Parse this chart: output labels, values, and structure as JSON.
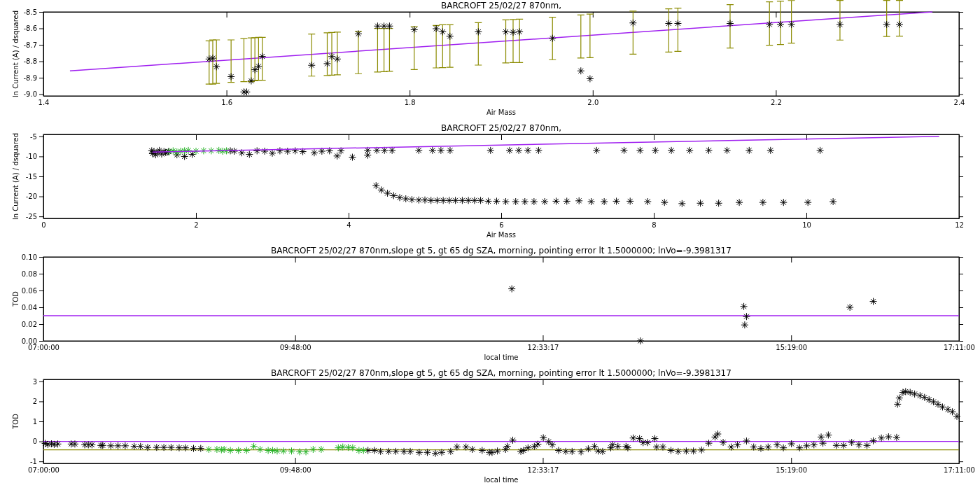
{
  "chart_data": [
    {
      "type": "scatter",
      "title": "BARCROFT 25/02/27 870nm,",
      "xlabel": "Air Mass",
      "ylabel": "ln Current (A) / dsquared",
      "xlim": [
        1.4,
        2.4
      ],
      "ylim": [
        -9.01,
        -8.5
      ],
      "xticks": [
        1.4,
        1.6,
        1.8,
        {
          "value": 2,
          "label": "2.0"
        },
        2.2,
        2.4
      ],
      "yticks": [
        {
          "value": -9,
          "label": "-9.0"
        },
        -8.9,
        -8.8,
        -8.7,
        -8.6,
        -8.5
      ],
      "marker": "cross",
      "series": [
        {
          "type": "line",
          "marker": "none",
          "color": "#a020f0",
          "x": [
            1.429,
            2.371
          ],
          "values": [
            -8.858,
            -8.5
          ]
        },
        {
          "color": "#000000",
          "x": [
            1.581,
            1.585,
            1.589,
            1.605,
            1.619,
            1.622,
            1.627,
            1.631,
            1.635,
            1.639,
            1.693,
            1.71,
            1.715,
            1.721,
            1.744,
            1.765,
            1.772,
            1.778,
            1.805,
            1.829,
            1.836,
            1.844,
            1.875,
            1.905,
            1.913,
            1.92,
            1.956,
            1.987,
            1.997,
            2.044,
            2.083,
            2.093,
            2.15,
            2.193,
            2.205,
            2.217,
            2.27,
            2.321,
            2.335
          ],
          "values": [
            -8.786,
            -8.781,
            -8.833,
            -8.893,
            -8.986,
            -8.986,
            -8.919,
            -8.851,
            -8.831,
            -8.77,
            -8.824,
            -8.814,
            -8.771,
            -8.786,
            -8.633,
            -8.586,
            -8.586,
            -8.586,
            -8.608,
            -8.602,
            -8.621,
            -8.648,
            -8.621,
            -8.621,
            -8.624,
            -8.621,
            -8.66,
            -8.858,
            -8.906,
            -8.567,
            -8.57,
            -8.57,
            -8.57,
            -8.576,
            -8.576,
            -8.576,
            -8.576,
            -8.576,
            -8.576
          ],
          "errors": [
            [
              -8.938,
              -8.676
            ],
            [
              -8.938,
              -8.67
            ],
            [
              -8.934,
              -8.67
            ],
            [
              -8.928,
              -8.67
            ],
            [
              -8.923,
              -8.662
            ],
            null,
            [
              -8.923,
              -8.658
            ],
            [
              -8.918,
              -8.657
            ],
            [
              -8.915,
              -8.655
            ],
            [
              -8.915,
              -8.655
            ],
            [
              -8.89,
              -8.634
            ],
            [
              -8.886,
              -8.627
            ],
            [
              -8.884,
              -8.625
            ],
            [
              -8.882,
              -8.623
            ],
            [
              -8.875,
              -8.617
            ],
            [
              -8.865,
              -8.6
            ],
            [
              -8.863,
              -8.6
            ],
            [
              -8.861,
              -8.6
            ],
            [
              -8.85,
              -8.59
            ],
            [
              -8.84,
              -8.582
            ],
            [
              -8.838,
              -8.578
            ],
            [
              -8.836,
              -8.578
            ],
            [
              -8.823,
              -8.565
            ],
            [
              -8.81,
              -8.548
            ],
            [
              -8.808,
              -8.546
            ],
            [
              -8.808,
              -8.544
            ],
            [
              -8.79,
              -8.532
            ],
            [
              -8.78,
              -8.519
            ],
            [
              -8.778,
              -8.513
            ],
            [
              -8.757,
              -8.495
            ],
            [
              -8.744,
              -8.481
            ],
            [
              -8.74,
              -8.477
            ],
            [
              -8.719,
              -8.456
            ],
            [
              -8.702,
              -8.439
            ],
            [
              -8.698,
              -8.435
            ],
            [
              -8.69,
              -8.431
            ],
            [
              -8.671,
              -8.43
            ],
            [
              -8.649,
              -8.43
            ],
            [
              -8.647,
              -8.43
            ]
          ]
        }
      ]
    },
    {
      "type": "scatter",
      "title": "BARCROFT 25/02/27 870nm,",
      "xlabel": "Air Mass",
      "ylabel": "ln Current (A) / dsquared",
      "xlim": [
        0,
        12
      ],
      "ylim": [
        -25.5,
        -4.5
      ],
      "xticks": [
        0,
        2,
        4,
        6,
        8,
        10,
        12
      ],
      "yticks": [
        -25,
        -20,
        -15,
        -10,
        -5
      ],
      "marker": "cross",
      "series": [
        {
          "color": "#000000",
          "x": [
            1.42,
            1.43,
            1.45,
            1.47,
            1.5,
            1.52,
            1.55,
            1.58,
            1.6,
            1.62,
            1.64,
            1.75,
            1.85,
            1.95,
            2.45,
            2.5,
            2.6,
            2.7,
            2.8,
            2.9,
            3.0,
            3.1,
            3.2,
            3.3,
            3.4,
            3.55,
            3.65,
            3.75,
            3.85,
            3.9,
            4.05,
            4.25,
            4.25,
            4.37,
            4.47,
            4.57,
            4.92,
            5.1,
            5.21,
            5.33,
            5.86,
            6.11,
            6.23,
            6.35,
            6.49,
            7.25,
            7.61,
            7.82,
            8.02,
            8.23,
            8.47,
            8.72,
            8.96,
            9.25,
            9.53,
            10.18,
            4.36,
            4.43,
            4.51,
            4.59,
            4.67,
            4.75,
            4.83,
            4.92,
            5.0,
            5.08,
            5.16,
            5.24,
            5.32,
            5.4,
            5.49,
            5.57,
            5.65,
            5.73,
            5.83,
            5.94,
            6.06,
            6.19,
            6.31,
            6.43,
            6.57,
            6.72,
            6.86,
            7.02,
            7.18,
            7.35,
            7.51,
            7.69,
            7.92,
            8.14,
            8.37,
            8.61,
            8.85,
            9.12,
            9.43,
            9.7,
            10.02,
            10.35
          ],
          "values": [
            -8.6,
            -9.3,
            -8.8,
            -9.6,
            -9.0,
            -8.5,
            -9.4,
            -8.8,
            -9.0,
            -9.0,
            -8.8,
            -9.6,
            -10.0,
            -9.5,
            -8.6,
            -8.7,
            -9.1,
            -9.5,
            -8.6,
            -8.7,
            -9.2,
            -8.6,
            -8.7,
            -8.6,
            -8.8,
            -9.1,
            -8.7,
            -8.6,
            -9.9,
            -8.6,
            -10.2,
            -9.7,
            -8.5,
            -8.5,
            -8.5,
            -8.5,
            -8.5,
            -8.5,
            -8.5,
            -8.5,
            -8.5,
            -8.5,
            -8.5,
            -8.5,
            -8.5,
            -8.5,
            -8.5,
            -8.5,
            -8.5,
            -8.5,
            -8.5,
            -8.5,
            -8.5,
            -8.5,
            -8.5,
            -8.5,
            -17.3,
            -18.4,
            -19.2,
            -19.8,
            -20.3,
            -20.6,
            -20.8,
            -20.9,
            -20.9,
            -21.0,
            -21.0,
            -21.0,
            -21.0,
            -21.0,
            -21.0,
            -21.0,
            -21.0,
            -21.0,
            -21.2,
            -21.2,
            -21.3,
            -21.3,
            -21.3,
            -21.3,
            -21.3,
            -21.2,
            -21.2,
            -21.1,
            -21.3,
            -21.3,
            -21.2,
            -21.2,
            -21.3,
            -21.5,
            -21.8,
            -21.7,
            -21.7,
            -21.5,
            -21.5,
            -21.5,
            -21.5,
            -21.3
          ]
        },
        {
          "color": "#20b020",
          "x": [
            1.65,
            1.7,
            1.75,
            1.8,
            1.85,
            1.9,
            2.0,
            2.1,
            2.2,
            2.3,
            2.35,
            2.4
          ],
          "values": [
            -8.8,
            -8.6,
            -8.9,
            -8.7,
            -8.6,
            -8.5,
            -8.7,
            -8.6,
            -8.6,
            -8.5,
            -8.7,
            -8.6
          ]
        },
        {
          "type": "line",
          "marker": "none",
          "color": "#a020f0",
          "x": [
            1.43,
            11.74
          ],
          "values": [
            -8.9,
            -5.0
          ]
        }
      ]
    },
    {
      "type": "scatter",
      "title": "BARCROFT 25/02/27 870nm,slope gt 5, gt 65 dg SZA, morning, pointing error lt 1.5000000; lnVo=-9.3981317",
      "xlabel": "local time",
      "ylabel": "TOD",
      "xlim": [
        7,
        17.1833
      ],
      "ylim": [
        0,
        0.1
      ],
      "xticks": [
        {
          "value": 7,
          "label": "07:00:00"
        },
        {
          "value": 9.8,
          "label": "09:48:00"
        },
        {
          "value": 12.5547,
          "label": "12:33:17"
        },
        {
          "value": 15.3167,
          "label": "15:19:00"
        },
        {
          "value": 17.1833,
          "label": "17:11:00"
        }
      ],
      "yticks": [
        {
          "value": 0,
          "label": "0.00"
        },
        {
          "value": 0.02,
          "label": "0.02"
        },
        {
          "value": 0.04,
          "label": "0.04"
        },
        {
          "value": 0.06,
          "label": "0.06"
        },
        {
          "value": 0.08,
          "label": "0.08"
        },
        {
          "value": 0.1,
          "label": "0.10"
        }
      ],
      "marker": "cross",
      "series": [
        {
          "color": "#000000",
          "x": [
            12.21,
            13.64,
            14.79,
            14.82,
            14.8,
            15.97,
            16.23
          ],
          "values": [
            0.062,
            0.0,
            0.041,
            0.029,
            0.019,
            0.04,
            0.047
          ]
        }
      ],
      "ref_lines": [
        {
          "axis": "y",
          "value": 0.03,
          "color": "#a020f0"
        }
      ]
    },
    {
      "type": "scatter",
      "title": "BARCROFT 25/02/27 870nm,slope gt 5, gt 65 dg SZA, morning, pointing error lt 1.5000000; lnVo=-9.3981317",
      "xlabel": "local time",
      "ylabel": "TOD",
      "xlim": [
        7,
        17.1833
      ],
      "ylim": [
        -1.1,
        3.1
      ],
      "xticks": [
        {
          "value": 7,
          "label": "07:00:00"
        },
        {
          "value": 9.8,
          "label": "09:48:00"
        },
        {
          "value": 12.5547,
          "label": "12:33:17"
        },
        {
          "value": 15.3167,
          "label": "15:19:00"
        },
        {
          "value": 17.1833,
          "label": "17:11:00"
        }
      ],
      "yticks": [
        -1,
        0,
        1,
        2,
        3
      ],
      "marker": "cross",
      "series": [
        {
          "color": "#000000",
          "x": [
            7.02,
            7.05,
            7.09,
            7.12,
            7.16,
            7.31,
            7.35,
            7.46,
            7.5,
            7.54,
            7.64,
            7.66,
            7.75,
            7.83,
            7.91,
            8.01,
            8.08,
            8.16,
            8.26,
            8.34,
            8.42,
            8.51,
            8.58,
            8.67,
            8.75,
            10.61,
            10.68,
            10.75,
            10.84,
            10.92,
            11.01,
            11.08,
            11.18,
            11.27,
            11.36,
            11.43,
            11.53,
            11.6,
            11.7,
            11.77,
            11.88,
            11.96,
            11.99,
            12.05,
            12.14,
            12.16,
            12.22,
            12.31,
            12.34,
            12.39,
            12.46,
            12.5,
            12.56,
            12.62,
            12.66,
            12.73,
            12.81,
            12.88,
            12.98,
            13.06,
            13.13,
            13.17,
            13.22,
            13.31,
            13.33,
            13.39,
            13.48,
            13.5,
            13.56,
            13.63,
            13.67,
            13.72,
            13.8,
            13.82,
            13.89,
            13.98,
            14.06,
            14.15,
            14.23,
            14.32,
            14.4,
            14.47,
            14.5,
            14.56,
            14.65,
            14.72,
            14.82,
            14.9,
            14.98,
            15.06,
            15.16,
            15.23,
            15.32,
            15.41,
            15.49,
            15.57,
            15.65,
            15.67,
            15.73,
            15.82,
            15.9,
            15.99,
            16.07,
            16.16,
            16.23,
            16.32,
            16.4,
            16.49,
            16.5,
            16.52,
            16.56,
            16.59,
            16.64,
            16.69,
            16.75,
            16.8,
            16.85,
            16.9,
            16.95,
            17.0,
            17.06,
            17.11,
            17.16
          ],
          "values": [
            -0.1,
            -0.15,
            -0.12,
            -0.15,
            -0.13,
            -0.13,
            -0.13,
            -0.17,
            -0.17,
            -0.17,
            -0.2,
            -0.2,
            -0.22,
            -0.22,
            -0.22,
            -0.25,
            -0.25,
            -0.3,
            -0.3,
            -0.3,
            -0.3,
            -0.32,
            -0.32,
            -0.35,
            -0.35,
            -0.45,
            -0.45,
            -0.5,
            -0.5,
            -0.5,
            -0.5,
            -0.5,
            -0.55,
            -0.55,
            -0.6,
            -0.55,
            -0.5,
            -0.28,
            -0.28,
            -0.4,
            -0.45,
            -0.55,
            -0.55,
            -0.48,
            -0.4,
            -0.25,
            0.06,
            -0.5,
            -0.45,
            -0.32,
            -0.25,
            -0.14,
            0.18,
            -0.02,
            -0.17,
            -0.45,
            -0.5,
            -0.5,
            -0.52,
            -0.37,
            -0.25,
            -0.48,
            -0.5,
            -0.32,
            -0.17,
            -0.25,
            -0.25,
            -0.32,
            0.17,
            0.14,
            -0.06,
            -0.06,
            0.14,
            -0.28,
            -0.28,
            -0.45,
            -0.5,
            -0.48,
            -0.48,
            -0.43,
            -0.09,
            0.22,
            0.37,
            -0.05,
            -0.28,
            -0.17,
            0.02,
            -0.28,
            -0.35,
            -0.28,
            -0.17,
            -0.32,
            -0.12,
            -0.32,
            -0.22,
            -0.17,
            0.22,
            -0.09,
            0.32,
            -0.2,
            -0.2,
            -0.05,
            -0.17,
            -0.2,
            0.03,
            0.17,
            0.23,
            0.2,
            1.86,
            2.17,
            2.45,
            2.49,
            2.45,
            2.37,
            2.29,
            2.2,
            2.09,
            1.98,
            1.86,
            1.72,
            1.6,
            1.48,
            1.25
          ]
        },
        {
          "color": "#20b020",
          "x": [
            8.84,
            8.93,
            8.98,
            9.01,
            9.08,
            9.17,
            9.26,
            9.34,
            9.41,
            9.5,
            9.55,
            9.6,
            9.67,
            9.76,
            9.85,
            9.92,
            10.0,
            10.09,
            10.28,
            10.33,
            10.39,
            10.44,
            10.51,
            10.56
          ],
          "values": [
            -0.4,
            -0.4,
            -0.42,
            -0.4,
            -0.45,
            -0.45,
            -0.45,
            -0.25,
            -0.4,
            -0.45,
            -0.45,
            -0.48,
            -0.48,
            -0.48,
            -0.52,
            -0.52,
            -0.4,
            -0.4,
            -0.32,
            -0.28,
            -0.3,
            -0.32,
            -0.45,
            -0.45
          ]
        }
      ],
      "ref_lines": [
        {
          "axis": "y",
          "value": 0,
          "color": "#a020f0"
        },
        {
          "axis": "y",
          "value": -0.42,
          "color": "#8b8b00"
        }
      ]
    }
  ]
}
